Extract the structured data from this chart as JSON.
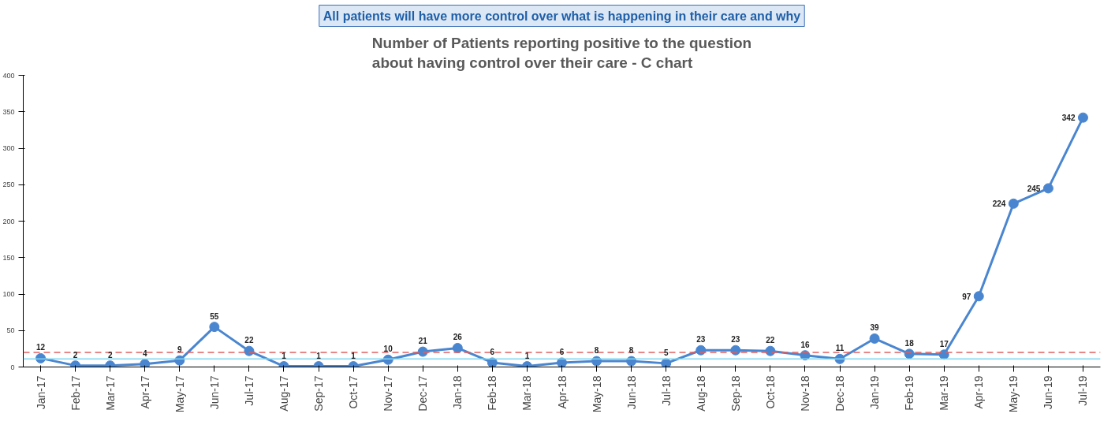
{
  "chart_data": {
    "type": "line",
    "title": "Number of Patients reporting positive to the question\nabout having control over their care - C chart",
    "annotations": [
      "All patients will have more control over what is happening in their care and why"
    ],
    "categories": [
      "Jan-17",
      "Feb-17",
      "Mar-17",
      "Apr-17",
      "May-17",
      "Jun-17",
      "Jul-17",
      "Aug-17",
      "Sep-17",
      "Oct-17",
      "Nov-17",
      "Dec-17",
      "Jan-18",
      "Feb-18",
      "Mar-18",
      "Apr-18",
      "May-18",
      "Jun-18",
      "Jul-18",
      "Aug-18",
      "Sep-18",
      "Oct-18",
      "Nov-18",
      "Dec-18",
      "Jan-19",
      "Feb-19",
      "Mar-19",
      "Apr-19",
      "May-19",
      "Jun-19",
      "Jul-19"
    ],
    "series": [
      {
        "color": "#4a86d0",
        "values": [
          12,
          2,
          2,
          4,
          9,
          55,
          22,
          1,
          1,
          1,
          10,
          21,
          26,
          6,
          1,
          6,
          8,
          8,
          5,
          23,
          23,
          22,
          16,
          11,
          39,
          18,
          17,
          97,
          224,
          245,
          342
        ]
      }
    ],
    "ylim": [
      0,
      400
    ],
    "yticks": [
      0,
      50,
      100,
      150,
      200,
      250,
      300,
      350,
      400
    ],
    "ref_lines": [
      {
        "axis": "y",
        "value": 20,
        "color": "#e06060",
        "line_style": "dashed"
      },
      {
        "axis": "y",
        "value": 11,
        "color": "#7fd6ef",
        "line_style": "solid"
      }
    ],
    "marker": "circle",
    "line_style": "solid",
    "data_labels": true,
    "grid": false
  }
}
